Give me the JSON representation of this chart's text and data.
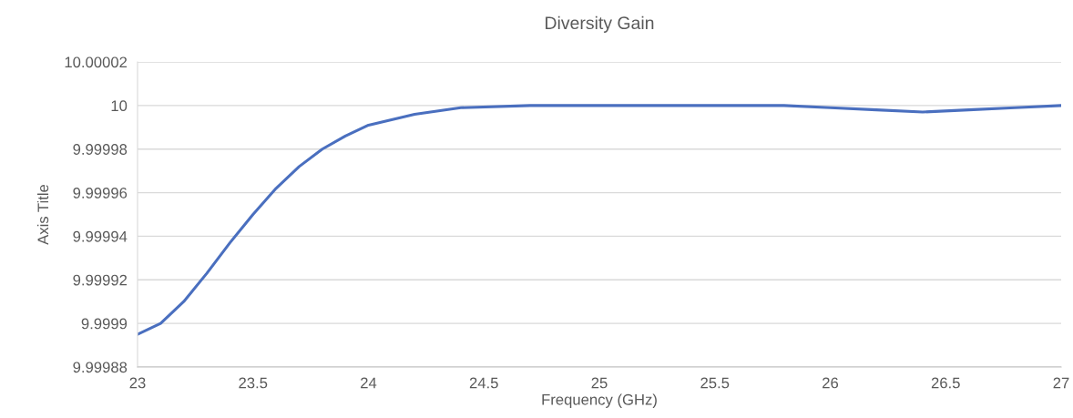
{
  "chart_data": {
    "type": "line",
    "title": "Diversity Gain",
    "xlabel": "Frequency (GHz)",
    "ylabel": "Axis Title",
    "x": [
      23.0,
      23.1,
      23.2,
      23.3,
      23.4,
      23.5,
      23.6,
      23.7,
      23.8,
      23.9,
      24.0,
      24.2,
      24.4,
      24.7,
      25.0,
      25.5,
      25.8,
      26.0,
      26.2,
      26.4,
      26.6,
      26.8,
      27.0
    ],
    "series": [
      {
        "color": "#4a6fbf",
        "values": [
          9.999895,
          9.9999,
          9.99991,
          9.999923,
          9.999937,
          9.99995,
          9.999962,
          9.999972,
          9.99998,
          9.999986,
          9.999991,
          9.999996,
          9.999999,
          10,
          10,
          10,
          10,
          9.999999,
          9.999998,
          9.999997,
          9.999998,
          9.999999,
          10
        ]
      }
    ],
    "xlim": [
      23,
      27
    ],
    "xticks": [
      23,
      23.5,
      24,
      24.5,
      25,
      25.5,
      26,
      26.5,
      27
    ],
    "ylim": [
      9.99988,
      10.00002
    ],
    "yticks": [
      9.99988,
      9.9999,
      9.99992,
      9.99994,
      9.99996,
      9.99998,
      10,
      10.00002
    ],
    "grid": "y",
    "marker": "none",
    "line_style": "solid"
  }
}
